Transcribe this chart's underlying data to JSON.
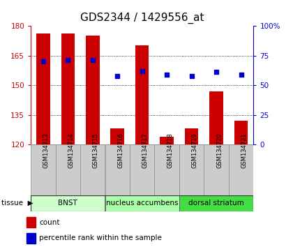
{
  "title": "GDS2344 / 1429556_at",
  "samples": [
    "GSM134713",
    "GSM134714",
    "GSM134715",
    "GSM134716",
    "GSM134717",
    "GSM134718",
    "GSM134719",
    "GSM134720",
    "GSM134721"
  ],
  "counts": [
    176,
    176,
    175,
    128,
    170,
    124,
    128,
    147,
    132
  ],
  "percentile_ranks": [
    70,
    71,
    71,
    58,
    62,
    59,
    58,
    61,
    59
  ],
  "ylim_left": [
    120,
    180
  ],
  "yticks_left": [
    120,
    135,
    150,
    165,
    180
  ],
  "ylim_right": [
    0,
    100
  ],
  "yticks_right": [
    0,
    25,
    50,
    75,
    100
  ],
  "bar_color": "#cc0000",
  "dot_color": "#0000cc",
  "tissue_groups": [
    {
      "label": "BNST",
      "start": 0,
      "end": 3,
      "color": "#ccffcc"
    },
    {
      "label": "nucleus accumbens",
      "start": 3,
      "end": 6,
      "color": "#aaffaa"
    },
    {
      "label": "dorsal striatum",
      "start": 6,
      "end": 9,
      "color": "#44dd44"
    }
  ],
  "legend_count": "count",
  "legend_percentile": "percentile rank within the sample",
  "title_fontsize": 11,
  "left_tick_color": "#cc0000",
  "right_tick_color": "#0000cc",
  "background_xtick": "#cccccc",
  "gridline_ticks": [
    135,
    150,
    165
  ],
  "right_ytick_labels": [
    "0",
    "25",
    "50",
    "75",
    "100%"
  ]
}
